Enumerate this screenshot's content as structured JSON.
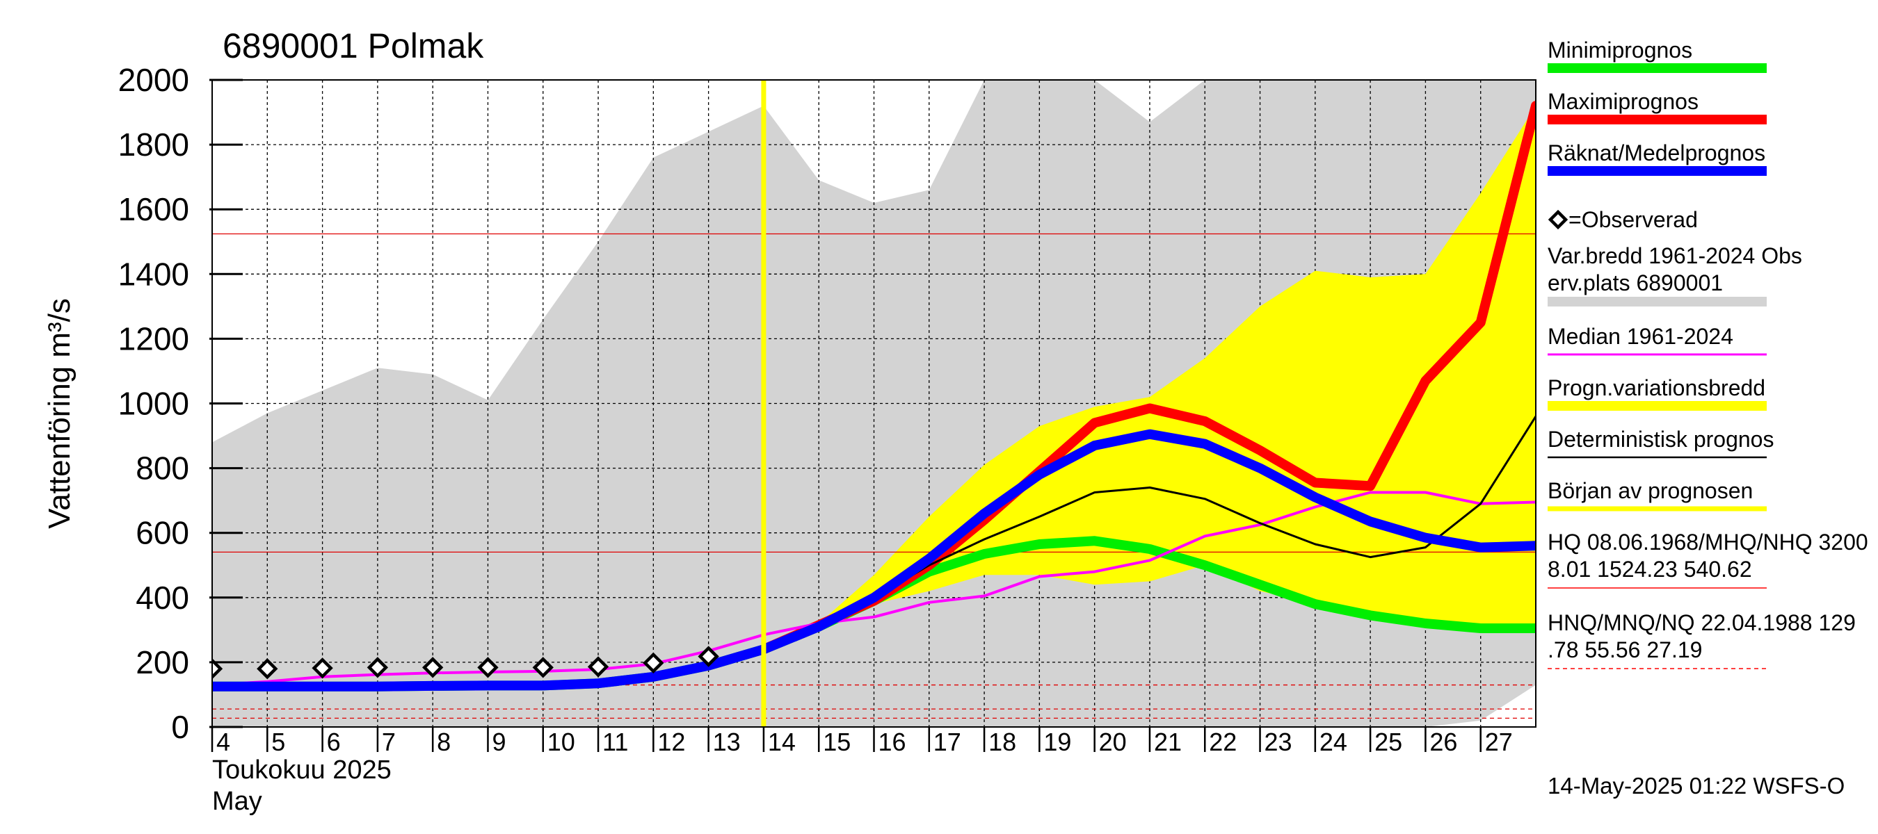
{
  "chart_data": {
    "type": "line",
    "title": "6890001 Polmak",
    "ylabel": "Vattenföring m³/s",
    "ylim": [
      0,
      2000
    ],
    "yticks": [
      0,
      200,
      400,
      600,
      800,
      1000,
      1200,
      1400,
      1600,
      1800,
      2000
    ],
    "x_start_day": 4,
    "x_end_day": 28,
    "x_tick_labels": [
      "4",
      "5",
      "6",
      "7",
      "8",
      "9",
      "10",
      "11",
      "12",
      "13",
      "14",
      "15",
      "16",
      "17",
      "18",
      "19",
      "20",
      "21",
      "22",
      "23",
      "24",
      "25",
      "26",
      "27"
    ],
    "x_month_label_1": "Toukokuu  2025",
    "x_month_label_2": "May",
    "forecast_start_day": 14,
    "grid": true,
    "timestamp": "14-May-2025 01:22 WSFS-O",
    "hq_lines": [
      1524.23,
      540.62
    ],
    "hnq_lines": [
      129.78,
      55.56,
      27.19
    ],
    "var_band": {
      "x": [
        4,
        5,
        6,
        7,
        8,
        9,
        10,
        11,
        12,
        13,
        14,
        15,
        16,
        17,
        18,
        19,
        20,
        21,
        22,
        23,
        24,
        25,
        26,
        27,
        28
      ],
      "upper": [
        880,
        970,
        1040,
        1110,
        1090,
        1010,
        1260,
        1500,
        1760,
        1840,
        1920,
        1690,
        1620,
        1660,
        2000,
        2000,
        2000,
        1870,
        2000,
        2000,
        2000,
        2000,
        2000,
        2000,
        2000
      ],
      "lower": [
        0,
        0,
        0,
        0,
        0,
        0,
        0,
        0,
        0,
        0,
        0,
        0,
        0,
        0,
        0,
        0,
        0,
        0,
        0,
        0,
        0,
        0,
        0,
        20,
        130
      ]
    },
    "prog_band": {
      "x": [
        14,
        15,
        16,
        17,
        18,
        19,
        20,
        21,
        22,
        23,
        24,
        25,
        26,
        27,
        28
      ],
      "upper": [
        240,
        320,
        470,
        650,
        810,
        930,
        990,
        1020,
        1140,
        1300,
        1410,
        1390,
        1400,
        1650,
        1920
      ],
      "lower": [
        240,
        310,
        380,
        420,
        470,
        470,
        440,
        450,
        500,
        420,
        380,
        340,
        310,
        300,
        300
      ]
    },
    "series": [
      {
        "name": "Minimiprognos",
        "color": "#00ee00",
        "x": [
          4,
          5,
          6,
          7,
          8,
          9,
          10,
          11,
          12,
          13,
          14,
          15,
          16,
          17,
          18,
          19,
          20,
          21,
          22,
          23,
          24,
          25,
          26,
          27,
          28
        ],
        "values": [
          125,
          125,
          125,
          125,
          127,
          128,
          128,
          135,
          155,
          190,
          240,
          310,
          390,
          480,
          535,
          565,
          575,
          550,
          500,
          440,
          380,
          345,
          320,
          305,
          305
        ]
      },
      {
        "name": "Maximiprognos",
        "color": "#ff0000",
        "x": [
          14,
          15,
          16,
          17,
          18,
          19,
          20,
          21,
          22,
          23,
          24,
          25,
          26,
          27,
          28
        ],
        "values": [
          240,
          315,
          390,
          500,
          640,
          790,
          940,
          985,
          945,
          855,
          755,
          745,
          1070,
          1250,
          1920
        ]
      },
      {
        "name": "Räknat/Medelprognos",
        "color": "#0000ff",
        "x": [
          4,
          5,
          6,
          7,
          8,
          9,
          10,
          11,
          12,
          13,
          14,
          15,
          16,
          17,
          18,
          19,
          20,
          21,
          22,
          23,
          24,
          25,
          26,
          27,
          28
        ],
        "values": [
          125,
          125,
          125,
          125,
          127,
          128,
          128,
          135,
          155,
          190,
          240,
          310,
          400,
          520,
          660,
          780,
          870,
          905,
          875,
          800,
          710,
          635,
          585,
          555,
          560
        ]
      },
      {
        "name": "Median 1961-2024",
        "color": "#ff00ff",
        "x": [
          4,
          5,
          6,
          7,
          8,
          9,
          10,
          11,
          12,
          13,
          14,
          15,
          16,
          17,
          18,
          19,
          20,
          21,
          22,
          23,
          24,
          25,
          26,
          27,
          28
        ],
        "values": [
          130,
          140,
          155,
          162,
          167,
          170,
          172,
          178,
          195,
          235,
          285,
          320,
          340,
          385,
          405,
          465,
          480,
          515,
          590,
          625,
          680,
          725,
          725,
          690,
          695
        ]
      },
      {
        "name": "Deterministisk prognos",
        "color": "#000000",
        "x": [
          14,
          15,
          16,
          17,
          18,
          19,
          20,
          21,
          22,
          23,
          24,
          25,
          26,
          27,
          28
        ],
        "values": [
          240,
          310,
          400,
          500,
          580,
          650,
          725,
          740,
          705,
          630,
          565,
          525,
          555,
          690,
          960
        ]
      }
    ],
    "observed": {
      "name": "=Observerad",
      "x": [
        4,
        5,
        6,
        7,
        8,
        9,
        10,
        11,
        12,
        13
      ],
      "values": [
        180,
        180,
        182,
        184,
        184,
        184,
        184,
        186,
        198,
        218
      ]
    },
    "legend": [
      {
        "label": "Minimiprognos",
        "color": "#00ee00"
      },
      {
        "label": "Maximiprognos",
        "color": "#ff0000"
      },
      {
        "label": "Räknat/Medelprognos",
        "color": "#0000ff"
      },
      {
        "label": "=Observerad",
        "color": "#000000"
      },
      {
        "label": "Var.bredd 1961-2024   Obs",
        "label2": "erv.plats 6890001",
        "color": "#d3d3d3"
      },
      {
        "label": "Median 1961-2024",
        "color": "#ff00ff"
      },
      {
        "label": "Progn.variationsbredd",
        "color": "#ffff00"
      },
      {
        "label": "Deterministisk prognos",
        "color": "#000000"
      },
      {
        "label": "Början av prognosen",
        "color": "#ffff00"
      },
      {
        "label": "HQ 08.06.1968/MHQ/NHQ 3200",
        "label2": "8.01 1524.23 540.62",
        "color": "#ff0000"
      },
      {
        "label": "HNQ/MNQ/NQ 22.04.1988 129",
        "label2": ".78 55.56 27.19",
        "color": "#ff0000"
      }
    ]
  }
}
